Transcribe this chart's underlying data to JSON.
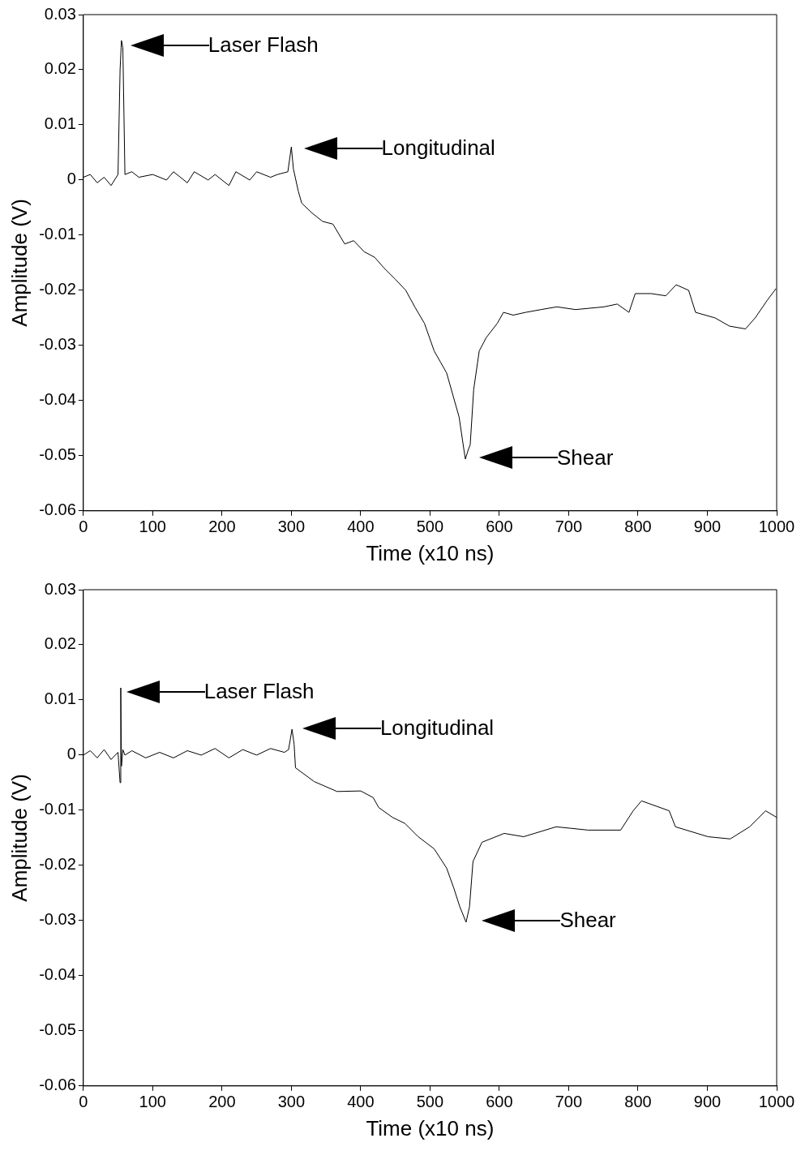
{
  "chart_data": [
    {
      "type": "line",
      "xlabel": "Time (x10 ns)",
      "ylabel": "Amplitude (V)",
      "color": "#000000",
      "xlim": [
        0,
        1000
      ],
      "xticks": [
        0,
        100,
        200,
        300,
        400,
        500,
        600,
        700,
        800,
        900,
        1000
      ],
      "ylim": [
        -0.06,
        0.03
      ],
      "yticks": [
        -0.06,
        -0.05,
        -0.04,
        -0.03,
        -0.02,
        -0.01,
        0,
        0.01,
        0.02,
        0.03
      ],
      "x": [
        0,
        10,
        20,
        30,
        40,
        50,
        53,
        55,
        57,
        60,
        70,
        80,
        100,
        120,
        130,
        150,
        160,
        180,
        190,
        210,
        220,
        240,
        250,
        270,
        280,
        295,
        300,
        303,
        310,
        315,
        330,
        345,
        360,
        377,
        390,
        405,
        420,
        434,
        450,
        465,
        478,
        492,
        506,
        515,
        524,
        533,
        542,
        549,
        551,
        555,
        558,
        563,
        571,
        581,
        597,
        606,
        620,
        638,
        660,
        683,
        710,
        751,
        770,
        787,
        796,
        819,
        840,
        855,
        873,
        883,
        911,
        932,
        955,
        969,
        987,
        999
      ],
      "values": [
        0.0005,
        0.001,
        -0.0005,
        0.0005,
        -0.001,
        0.001,
        0.02,
        0.0253,
        0.024,
        0.001,
        0.0015,
        0.0005,
        0.001,
        0,
        0.0015,
        -0.0005,
        0.0015,
        0,
        0.001,
        -0.001,
        0.0015,
        0,
        0.0015,
        0.0005,
        0.001,
        0.0015,
        0.006,
        0.002,
        -0.002,
        -0.0042,
        -0.006,
        -0.0075,
        -0.008,
        -0.0116,
        -0.011,
        -0.013,
        -0.014,
        -0.016,
        -0.018,
        -0.02,
        -0.023,
        -0.026,
        -0.031,
        -0.033,
        -0.035,
        -0.039,
        -0.043,
        -0.049,
        -0.0506,
        -0.049,
        -0.048,
        -0.038,
        -0.031,
        -0.0286,
        -0.026,
        -0.024,
        -0.0245,
        -0.024,
        -0.0235,
        -0.023,
        -0.0235,
        -0.023,
        -0.0225,
        -0.024,
        -0.0206,
        -0.0206,
        -0.021,
        -0.019,
        -0.02,
        -0.024,
        -0.025,
        -0.0265,
        -0.027,
        -0.025,
        -0.0217,
        -0.0197
      ],
      "annotations": [
        "Laser Flash",
        "Longitudinal",
        "Shear"
      ]
    },
    {
      "type": "line",
      "xlabel": "Time (x10 ns)",
      "ylabel": "Amplitude (V)",
      "color": "#000000",
      "xlim": [
        0,
        1000
      ],
      "xticks": [
        0,
        100,
        200,
        300,
        400,
        500,
        600,
        700,
        800,
        900,
        1000
      ],
      "ylim": [
        -0.06,
        0.03
      ],
      "yticks": [
        -0.06,
        -0.05,
        -0.04,
        -0.03,
        -0.02,
        -0.01,
        0,
        0.01,
        0.02,
        0.03
      ],
      "x": [
        0,
        10,
        20,
        30,
        40,
        50,
        53,
        54,
        55,
        57,
        60,
        70,
        90,
        110,
        130,
        150,
        170,
        190,
        210,
        230,
        250,
        270,
        290,
        296,
        301,
        304,
        306,
        333,
        366,
        400,
        418,
        426,
        446,
        464,
        483,
        506,
        524,
        534,
        543,
        552,
        557,
        562,
        575,
        607,
        635,
        682,
        728,
        775,
        793,
        805,
        845,
        854,
        901,
        933,
        961,
        984,
        1000
      ],
      "values": [
        0,
        0.0008,
        -0.0005,
        0.001,
        -0.0008,
        0.0005,
        -0.005,
        0.0122,
        -0.002,
        0.001,
        0,
        0.0008,
        -0.0005,
        0.0005,
        -0.0005,
        0.0008,
        0,
        0.0012,
        -0.0005,
        0.001,
        0,
        0.0012,
        0.0005,
        0.001,
        0.0047,
        0.002,
        -0.0023,
        -0.0048,
        -0.0066,
        -0.0065,
        -0.0077,
        -0.0095,
        -0.0113,
        -0.0124,
        -0.0148,
        -0.017,
        -0.0205,
        -0.024,
        -0.0275,
        -0.0303,
        -0.0275,
        -0.0193,
        -0.0158,
        -0.0142,
        -0.0148,
        -0.013,
        -0.0136,
        -0.0136,
        -0.0101,
        -0.0083,
        -0.0101,
        -0.013,
        -0.0148,
        -0.0152,
        -0.013,
        -0.0101,
        -0.0113
      ],
      "annotations": [
        "Laser Flash",
        "Longitudinal",
        "Shear"
      ]
    }
  ]
}
